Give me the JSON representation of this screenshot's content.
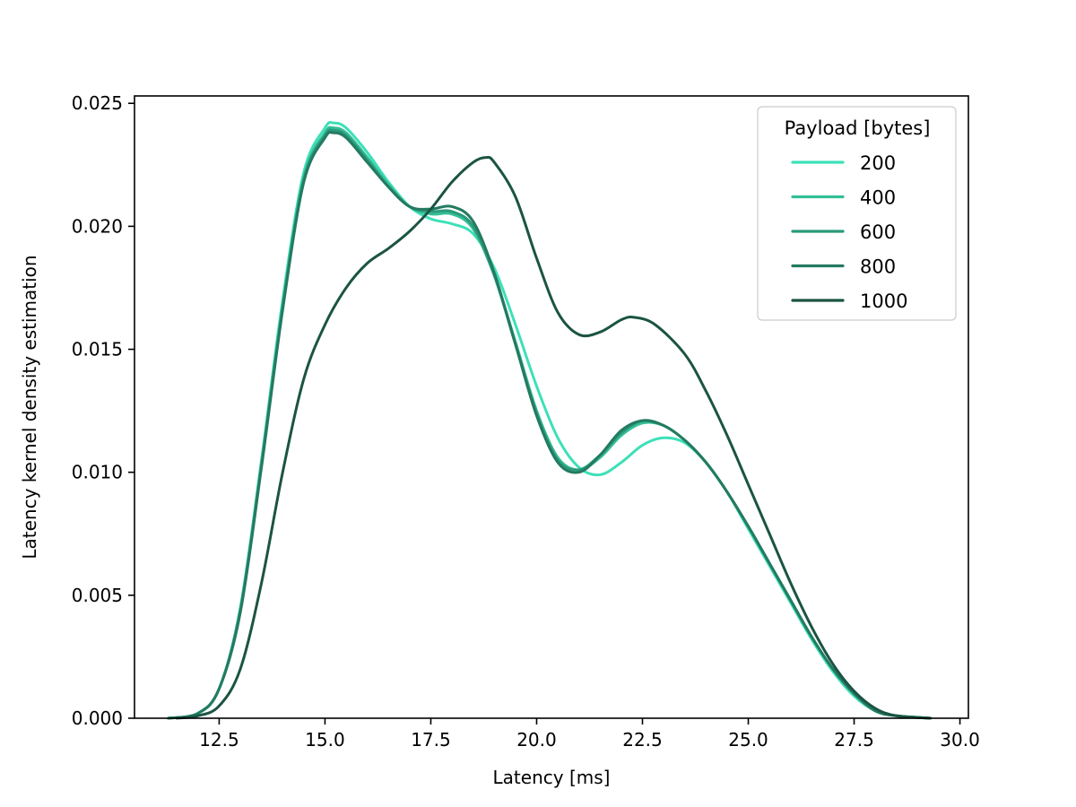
{
  "chart_data": {
    "type": "line",
    "title": "",
    "xlabel": "Latency [ms]",
    "ylabel": "Latency kernel density estimation",
    "xlim": [
      10.5,
      30.2
    ],
    "ylim": [
      0,
      0.0253
    ],
    "xticks": [
      {
        "value": 12.5,
        "label": "12.5"
      },
      {
        "value": 15.0,
        "label": "15.0"
      },
      {
        "value": 17.5,
        "label": "17.5"
      },
      {
        "value": 20.0,
        "label": "20.0"
      },
      {
        "value": 22.5,
        "label": "22.5"
      },
      {
        "value": 25.0,
        "label": "25.0"
      },
      {
        "value": 27.5,
        "label": "27.5"
      },
      {
        "value": 30.0,
        "label": "30.0"
      }
    ],
    "yticks": [
      {
        "value": 0.0,
        "label": "0.000"
      },
      {
        "value": 0.005,
        "label": "0.005"
      },
      {
        "value": 0.01,
        "label": "0.010"
      },
      {
        "value": 0.015,
        "label": "0.015"
      },
      {
        "value": 0.02,
        "label": "0.020"
      },
      {
        "value": 0.025,
        "label": "0.025"
      }
    ],
    "grid": false,
    "legend": {
      "title": "Payload [bytes]",
      "position": "top-right"
    },
    "series": [
      {
        "name": "200",
        "color": "#3de0b8",
        "points": [
          [
            11.3,
            0
          ],
          [
            12.0,
            0.0002
          ],
          [
            12.5,
            0.0012
          ],
          [
            13.0,
            0.0045
          ],
          [
            13.5,
            0.0105
          ],
          [
            14.0,
            0.017
          ],
          [
            14.5,
            0.0222
          ],
          [
            15.0,
            0.024
          ],
          [
            15.2,
            0.0242
          ],
          [
            15.5,
            0.024
          ],
          [
            16.0,
            0.023
          ],
          [
            16.5,
            0.0218
          ],
          [
            17.0,
            0.0208
          ],
          [
            17.5,
            0.0203
          ],
          [
            18.0,
            0.0201
          ],
          [
            18.5,
            0.0197
          ],
          [
            19.0,
            0.0183
          ],
          [
            19.5,
            0.016
          ],
          [
            20.0,
            0.0135
          ],
          [
            20.5,
            0.0114
          ],
          [
            21.0,
            0.0102
          ],
          [
            21.5,
            0.0099
          ],
          [
            22.0,
            0.0104
          ],
          [
            22.5,
            0.0111
          ],
          [
            23.0,
            0.0114
          ],
          [
            23.5,
            0.0112
          ],
          [
            24.0,
            0.0104
          ],
          [
            24.5,
            0.0092
          ],
          [
            25.0,
            0.0077
          ],
          [
            25.5,
            0.0062
          ],
          [
            26.0,
            0.0047
          ],
          [
            26.5,
            0.0032
          ],
          [
            27.0,
            0.0019
          ],
          [
            27.5,
            0.0009
          ],
          [
            28.0,
            0.0003
          ],
          [
            28.5,
            0.0001
          ],
          [
            29.3,
            0
          ]
        ]
      },
      {
        "name": "400",
        "color": "#33bf97",
        "points": [
          [
            11.3,
            0
          ],
          [
            12.0,
            0.0002
          ],
          [
            12.5,
            0.0012
          ],
          [
            13.0,
            0.0044
          ],
          [
            13.5,
            0.0104
          ],
          [
            14.0,
            0.0168
          ],
          [
            14.5,
            0.022
          ],
          [
            15.0,
            0.0238
          ],
          [
            15.2,
            0.024
          ],
          [
            15.5,
            0.0238
          ],
          [
            16.0,
            0.0228
          ],
          [
            16.5,
            0.0217
          ],
          [
            17.0,
            0.0208
          ],
          [
            17.5,
            0.0205
          ],
          [
            18.0,
            0.0205
          ],
          [
            18.5,
            0.0199
          ],
          [
            19.0,
            0.018
          ],
          [
            19.5,
            0.0153
          ],
          [
            20.0,
            0.0125
          ],
          [
            20.5,
            0.0106
          ],
          [
            21.0,
            0.0101
          ],
          [
            21.5,
            0.0106
          ],
          [
            22.0,
            0.0115
          ],
          [
            22.5,
            0.012
          ],
          [
            23.0,
            0.0119
          ],
          [
            23.5,
            0.0113
          ],
          [
            24.0,
            0.0104
          ],
          [
            24.5,
            0.0092
          ],
          [
            25.0,
            0.0078
          ],
          [
            25.5,
            0.0063
          ],
          [
            26.0,
            0.0048
          ],
          [
            26.5,
            0.0033
          ],
          [
            27.0,
            0.002
          ],
          [
            27.5,
            0.001
          ],
          [
            28.0,
            0.0003
          ],
          [
            28.5,
            0.0001
          ],
          [
            29.3,
            0
          ]
        ]
      },
      {
        "name": "600",
        "color": "#2a9a7a",
        "points": [
          [
            11.3,
            0
          ],
          [
            12.0,
            0.0002
          ],
          [
            12.5,
            0.0012
          ],
          [
            13.0,
            0.0044
          ],
          [
            13.5,
            0.0103
          ],
          [
            14.0,
            0.0167
          ],
          [
            14.5,
            0.0219
          ],
          [
            15.0,
            0.0237
          ],
          [
            15.2,
            0.0239
          ],
          [
            15.5,
            0.0237
          ],
          [
            16.0,
            0.0227
          ],
          [
            16.5,
            0.0216
          ],
          [
            17.0,
            0.0208
          ],
          [
            17.5,
            0.0206
          ],
          [
            18.0,
            0.0206
          ],
          [
            18.5,
            0.02
          ],
          [
            19.0,
            0.018
          ],
          [
            19.5,
            0.0152
          ],
          [
            20.0,
            0.0124
          ],
          [
            20.5,
            0.0105
          ],
          [
            21.0,
            0.0101
          ],
          [
            21.5,
            0.0107
          ],
          [
            22.0,
            0.0116
          ],
          [
            22.5,
            0.0121
          ],
          [
            23.0,
            0.0119
          ],
          [
            23.5,
            0.0113
          ],
          [
            24.0,
            0.0104
          ],
          [
            24.5,
            0.0092
          ],
          [
            25.0,
            0.0078
          ],
          [
            25.5,
            0.0063
          ],
          [
            26.0,
            0.0048
          ],
          [
            26.5,
            0.0033
          ],
          [
            27.0,
            0.002
          ],
          [
            27.5,
            0.001
          ],
          [
            28.0,
            0.0003
          ],
          [
            28.5,
            0.0001
          ],
          [
            29.3,
            0
          ]
        ]
      },
      {
        "name": "800",
        "color": "#247a61",
        "points": [
          [
            11.3,
            0
          ],
          [
            12.0,
            0.0002
          ],
          [
            12.5,
            0.0012
          ],
          [
            13.0,
            0.0043
          ],
          [
            13.5,
            0.0102
          ],
          [
            14.0,
            0.0166
          ],
          [
            14.5,
            0.0218
          ],
          [
            15.0,
            0.0236
          ],
          [
            15.2,
            0.0238
          ],
          [
            15.5,
            0.0236
          ],
          [
            16.0,
            0.0226
          ],
          [
            16.5,
            0.0216
          ],
          [
            17.0,
            0.0208
          ],
          [
            17.5,
            0.0207
          ],
          [
            18.0,
            0.0208
          ],
          [
            18.5,
            0.0202
          ],
          [
            19.0,
            0.0181
          ],
          [
            19.5,
            0.0152
          ],
          [
            20.0,
            0.0123
          ],
          [
            20.5,
            0.0104
          ],
          [
            21.0,
            0.01
          ],
          [
            21.5,
            0.0107
          ],
          [
            22.0,
            0.0117
          ],
          [
            22.5,
            0.0121
          ],
          [
            23.0,
            0.0119
          ],
          [
            23.5,
            0.0113
          ],
          [
            24.0,
            0.0104
          ],
          [
            24.5,
            0.0092
          ],
          [
            25.0,
            0.0078
          ],
          [
            25.5,
            0.0063
          ],
          [
            26.0,
            0.0048
          ],
          [
            26.5,
            0.0033
          ],
          [
            27.0,
            0.002
          ],
          [
            27.5,
            0.001
          ],
          [
            28.0,
            0.0003
          ],
          [
            28.5,
            0.0001
          ],
          [
            29.3,
            0
          ]
        ]
      },
      {
        "name": "1000",
        "color": "#1b5443",
        "points": [
          [
            11.5,
            0
          ],
          [
            12.0,
            0.0001
          ],
          [
            12.5,
            0.0005
          ],
          [
            13.0,
            0.002
          ],
          [
            13.5,
            0.0055
          ],
          [
            14.0,
            0.01
          ],
          [
            14.5,
            0.0138
          ],
          [
            15.0,
            0.016
          ],
          [
            15.5,
            0.0175
          ],
          [
            16.0,
            0.0185
          ],
          [
            16.5,
            0.0191
          ],
          [
            17.0,
            0.0198
          ],
          [
            17.5,
            0.0207
          ],
          [
            18.0,
            0.0218
          ],
          [
            18.5,
            0.0226
          ],
          [
            18.8,
            0.0228
          ],
          [
            19.0,
            0.0226
          ],
          [
            19.5,
            0.0212
          ],
          [
            20.0,
            0.0187
          ],
          [
            20.5,
            0.0165
          ],
          [
            21.0,
            0.0156
          ],
          [
            21.5,
            0.0157
          ],
          [
            22.0,
            0.0162
          ],
          [
            22.3,
            0.0163
          ],
          [
            22.8,
            0.016
          ],
          [
            23.5,
            0.0148
          ],
          [
            24.0,
            0.0133
          ],
          [
            24.5,
            0.0115
          ],
          [
            25.0,
            0.0095
          ],
          [
            25.5,
            0.0075
          ],
          [
            26.0,
            0.0055
          ],
          [
            26.5,
            0.0037
          ],
          [
            27.0,
            0.0022
          ],
          [
            27.5,
            0.0011
          ],
          [
            28.0,
            0.0004
          ],
          [
            28.5,
            0.0001
          ],
          [
            29.3,
            0
          ]
        ]
      }
    ]
  }
}
